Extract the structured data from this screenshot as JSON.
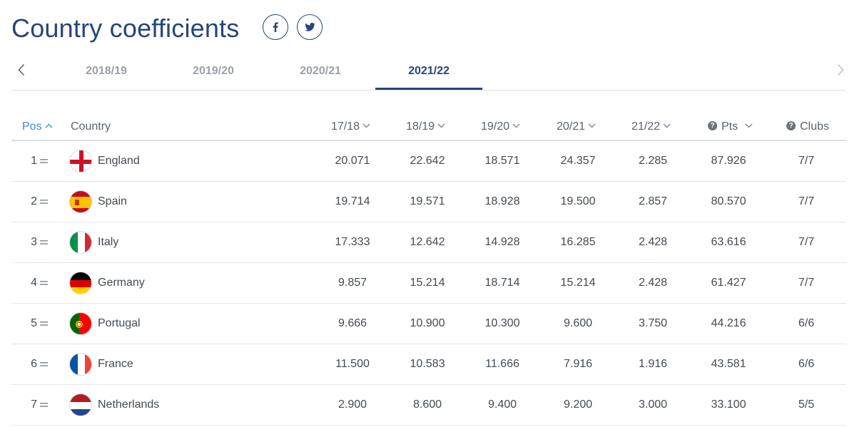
{
  "page": {
    "title": "Country coefficients",
    "share": [
      {
        "network": "facebook",
        "icon": "facebook-icon"
      },
      {
        "network": "twitter",
        "icon": "twitter-icon"
      }
    ]
  },
  "seasons": {
    "tabs": [
      "2018/19",
      "2019/20",
      "2020/21",
      "2021/22"
    ],
    "active": "2021/22",
    "prev_icon": "chevron-left-icon",
    "next_icon": "chevron-right-icon"
  },
  "table": {
    "headers": {
      "pos": "Pos",
      "country": "Country",
      "s1": "17/18",
      "s2": "18/19",
      "s3": "19/20",
      "s4": "20/21",
      "s5": "21/22",
      "pts": "Pts",
      "clubs": "Clubs"
    },
    "sorted_by": "pos",
    "rows": [
      {
        "pos": "1",
        "country": "England",
        "flag": "england-flag-icon",
        "s1": "20.071",
        "s2": "22.642",
        "s3": "18.571",
        "s4": "24.357",
        "s5": "2.285",
        "pts": "87.926",
        "clubs": "7/7"
      },
      {
        "pos": "2",
        "country": "Spain",
        "flag": "spain-flag-icon",
        "s1": "19.714",
        "s2": "19.571",
        "s3": "18.928",
        "s4": "19.500",
        "s5": "2.857",
        "pts": "80.570",
        "clubs": "7/7"
      },
      {
        "pos": "3",
        "country": "Italy",
        "flag": "italy-flag-icon",
        "s1": "17.333",
        "s2": "12.642",
        "s3": "14.928",
        "s4": "16.285",
        "s5": "2.428",
        "pts": "63.616",
        "clubs": "7/7"
      },
      {
        "pos": "4",
        "country": "Germany",
        "flag": "germany-flag-icon",
        "s1": "9.857",
        "s2": "15.214",
        "s3": "18.714",
        "s4": "15.214",
        "s5": "2.428",
        "pts": "61.427",
        "clubs": "7/7"
      },
      {
        "pos": "5",
        "country": "Portugal",
        "flag": "portugal-flag-icon",
        "s1": "9.666",
        "s2": "10.900",
        "s3": "10.300",
        "s4": "9.600",
        "s5": "3.750",
        "pts": "44.216",
        "clubs": "6/6"
      },
      {
        "pos": "6",
        "country": "France",
        "flag": "france-flag-icon",
        "s1": "11.500",
        "s2": "10.583",
        "s3": "11.666",
        "s4": "7.916",
        "s5": "1.916",
        "pts": "43.581",
        "clubs": "6/6"
      },
      {
        "pos": "7",
        "country": "Netherlands",
        "flag": "netherlands-flag-icon",
        "s1": "2.900",
        "s2": "8.600",
        "s3": "9.400",
        "s4": "9.200",
        "s5": "3.000",
        "pts": "33.100",
        "clubs": "5/5"
      }
    ]
  },
  "colors": {
    "brand": "#26457a",
    "sorted_header": "#3d8ad0",
    "inactive_tab": "#9aa1a9"
  }
}
